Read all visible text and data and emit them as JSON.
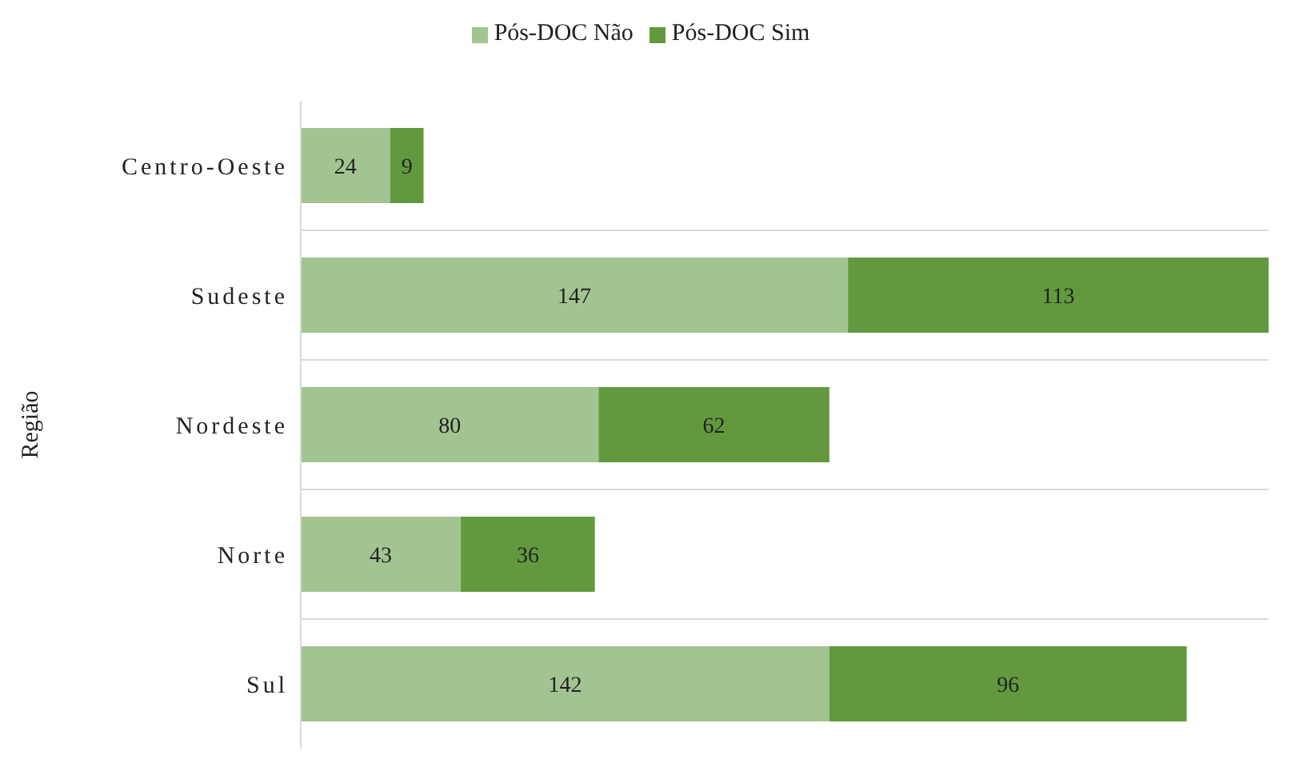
{
  "chart_data": {
    "type": "bar",
    "orientation": "horizontal",
    "stacked": true,
    "ylabel": "Região",
    "categories": [
      "Centro-Oeste",
      "Sudeste",
      "Nordeste",
      "Norte",
      "Sul"
    ],
    "series": [
      {
        "name": "Pós-DOC Não",
        "color": "#a1c490",
        "values": [
          24,
          147,
          80,
          43,
          142
        ]
      },
      {
        "name": "Pós-DOC Sim",
        "color": "#62993e",
        "values": [
          9,
          113,
          62,
          36,
          96
        ]
      }
    ],
    "data_labels": true,
    "legend": "top",
    "grid": "y",
    "tick_labels": "y"
  }
}
